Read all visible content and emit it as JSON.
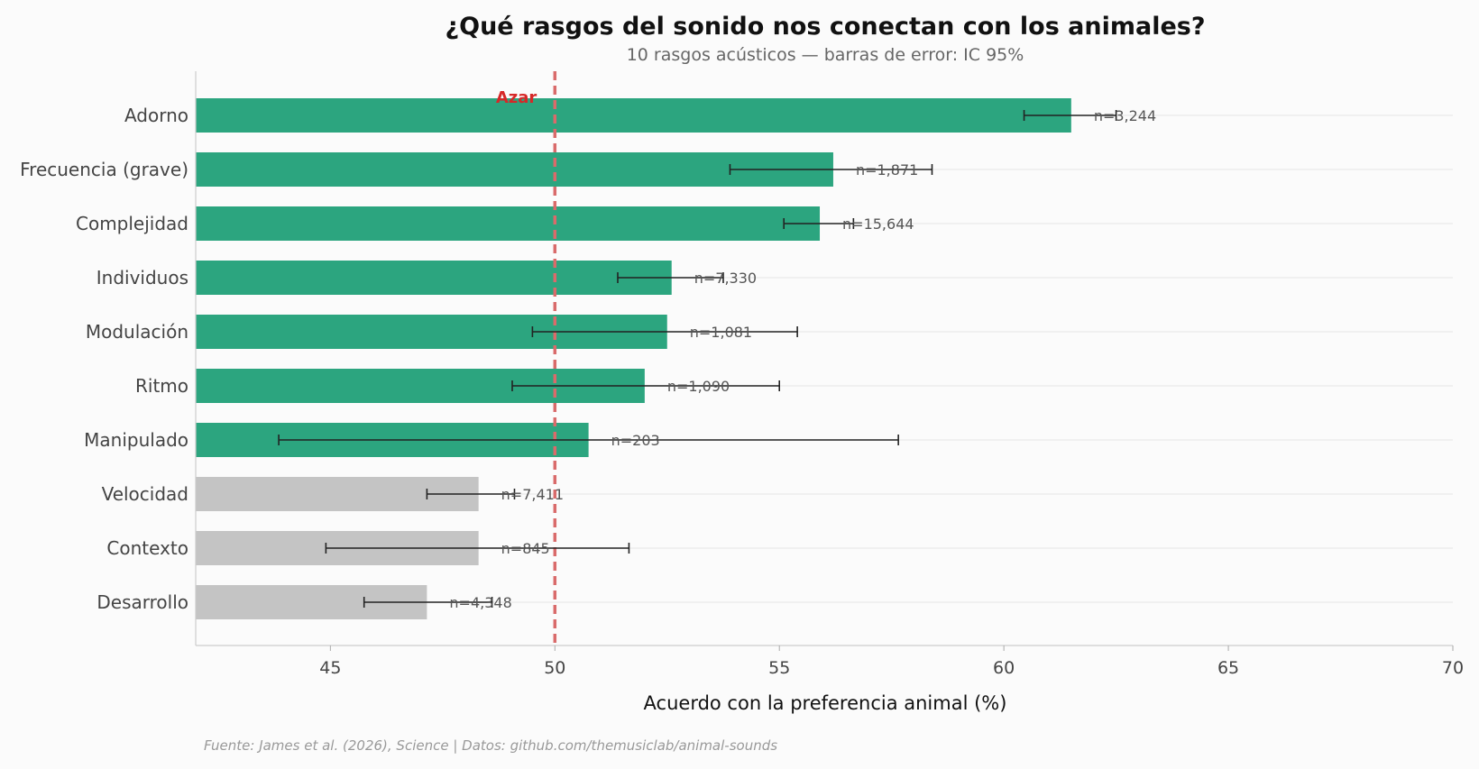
{
  "chart_data": {
    "type": "bar",
    "orientation": "horizontal",
    "title": "¿Qué rasgos del sonido nos conectan con los animales?",
    "subtitle": "10 rasgos acústicos — barras de error: IC 95%",
    "xlabel": "Acuerdo con la preferencia animal (%)",
    "ylabel": "",
    "xlim": [
      42,
      70
    ],
    "xticks": [
      "45",
      "50",
      "55",
      "60",
      "65",
      "70"
    ],
    "grid": "horizontal-light",
    "reference_line": {
      "value": 50,
      "label": "Azar",
      "color": "#d96b6b",
      "label_color": "#d62828"
    },
    "colors": {
      "significant": "#2ca57f",
      "not_significant": "#c4c4c4",
      "error_bar": "#222222"
    },
    "categories": [
      "Adorno",
      "Frecuencia (grave)",
      "Complejidad",
      "Individuos",
      "Modulación",
      "Ritmo",
      "Manipulado",
      "Velocidad",
      "Contexto",
      "Desarrollo"
    ],
    "values": [
      61.5,
      56.2,
      55.9,
      52.6,
      52.5,
      52.0,
      50.75,
      48.3,
      48.3,
      47.15
    ],
    "ci_low": [
      60.45,
      53.9,
      55.1,
      51.4,
      49.5,
      49.05,
      43.85,
      47.15,
      44.9,
      45.75
    ],
    "ci_high": [
      62.5,
      58.4,
      56.65,
      53.75,
      55.4,
      55.0,
      57.65,
      49.1,
      51.65,
      48.6
    ],
    "n_labels": [
      "n=3,244",
      "n=1,871",
      "n=15,644",
      "n=7,330",
      "n=1,081",
      "n=1,090",
      "n=203",
      "n=7,411",
      "n=845",
      "n=4,348"
    ],
    "significant": [
      true,
      true,
      true,
      true,
      true,
      true,
      true,
      false,
      false,
      false
    ]
  },
  "footer": {
    "source": "Fuente: James et al. (2026), Science | Datos: github.com/themusiclab/animal-sounds"
  }
}
